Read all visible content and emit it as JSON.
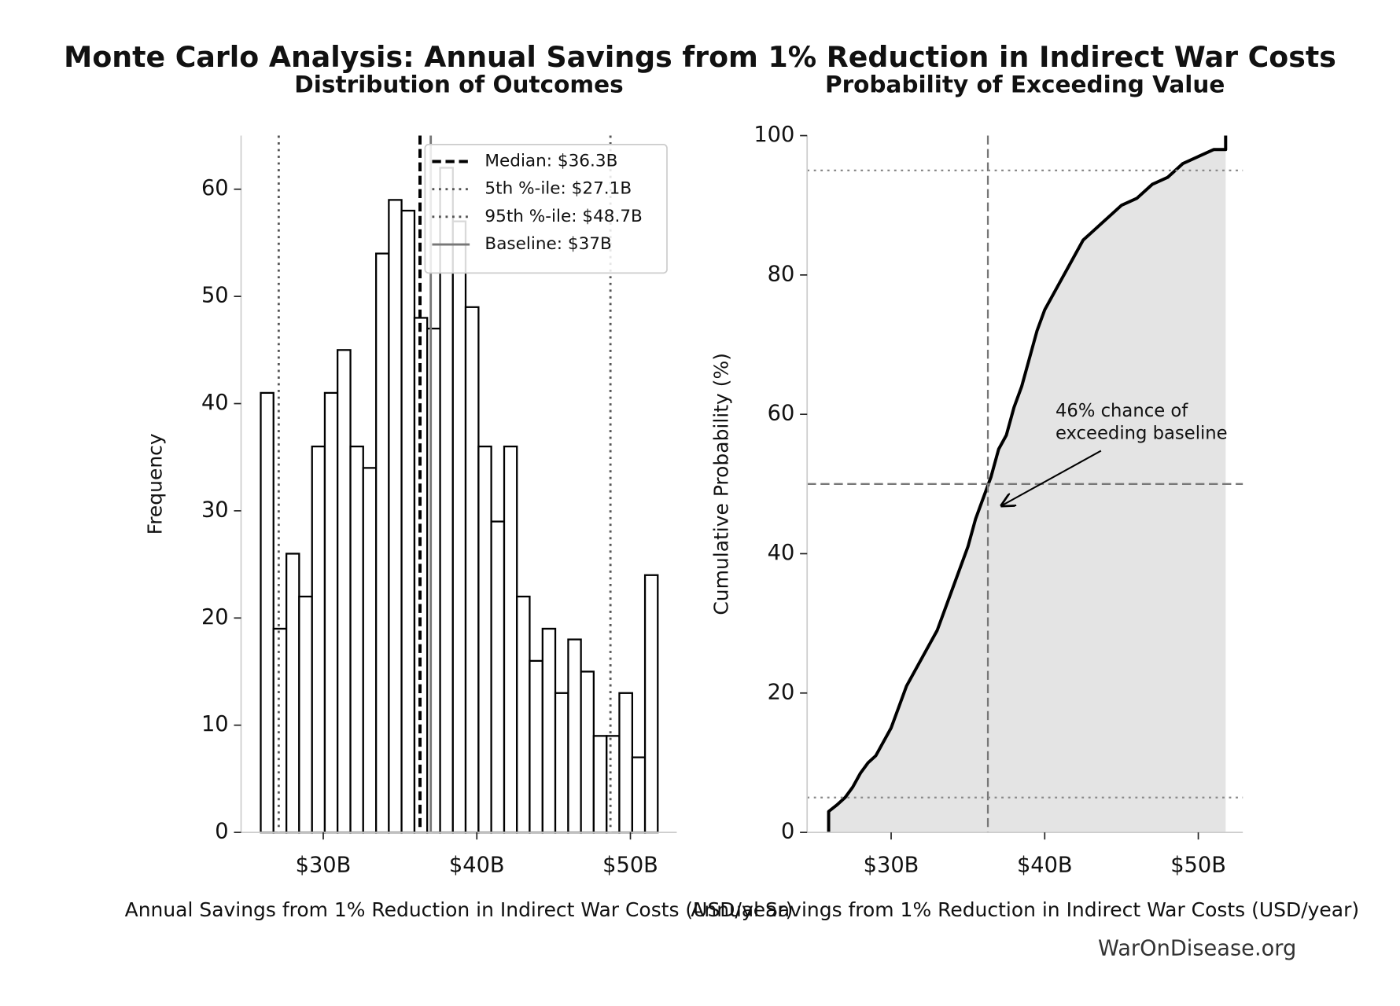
{
  "title": "Monte Carlo Analysis: Annual Savings from 1% Reduction in Indirect War Costs",
  "footer": "WarOnDisease.org",
  "chart_data": [
    {
      "type": "histogram",
      "title": "Distribution of Outcomes",
      "x_label": "Annual Savings from 1% Reduction in Indirect War Costs (USD/year)",
      "y_label": "Frequency",
      "bins": [
        25.93,
        26.76,
        27.6,
        28.43,
        29.27,
        30.1,
        30.93,
        31.77,
        32.6,
        33.44,
        34.27,
        35.1,
        35.94,
        36.77,
        37.61,
        38.44,
        39.27,
        40.11,
        40.94,
        41.78,
        42.61,
        43.44,
        44.28,
        45.11,
        45.95,
        46.78,
        47.61,
        48.45,
        49.28,
        50.12,
        50.95,
        51.78
      ],
      "values": [
        41,
        19,
        26,
        22,
        36,
        41,
        45,
        36,
        34,
        54,
        59,
        58,
        48,
        47,
        62,
        57,
        49,
        36,
        29,
        36,
        22,
        16,
        19,
        13,
        18,
        15,
        9,
        9,
        13,
        7,
        24
      ],
      "color": "#ffffff",
      "edgecolor": "#000000",
      "xlim": [
        24.65,
        53.02
      ],
      "ylim": [
        0,
        65
      ],
      "xticks": [
        {
          "value": 30,
          "label": "$30B"
        },
        {
          "value": 40,
          "label": "$40B"
        },
        {
          "value": 50,
          "label": "$50B"
        }
      ],
      "yticks": [
        0,
        10,
        20,
        30,
        40,
        50,
        60
      ],
      "reference_lines": [
        {
          "orientation": "v",
          "value": 36.3,
          "label": "Median: $36.3B",
          "style": "dashed",
          "color": "#000000",
          "width": 3.5
        },
        {
          "orientation": "v",
          "value": 27.1,
          "label": "5th %-ile: $27.1B",
          "style": "dotted",
          "color": "#555555",
          "width": 2.5
        },
        {
          "orientation": "v",
          "value": 48.7,
          "label": "95th %-ile: $48.7B",
          "style": "dotted",
          "color": "#555555",
          "width": 2.5
        },
        {
          "orientation": "v",
          "value": 37,
          "label": "Baseline: $37B",
          "style": "solid",
          "color": "#777777",
          "width": 2.5
        }
      ],
      "legend": "upper right",
      "grid": false
    },
    {
      "type": "line",
      "title": "Probability of Exceeding Value",
      "x_label": "Annual Savings from 1% Reduction in Indirect War Costs (USD/year)",
      "y_label": "Cumulative Probability (%)",
      "x": [
        25.93,
        25.93,
        26.5,
        27.0,
        27.5,
        28.0,
        28.5,
        29.0,
        29.5,
        30.0,
        30.5,
        31.0,
        31.5,
        32.0,
        32.5,
        33.0,
        33.5,
        34.0,
        34.5,
        35.0,
        35.5,
        36.0,
        36.5,
        37.0,
        37.5,
        38.0,
        38.5,
        39.0,
        39.5,
        40.0,
        40.5,
        41.0,
        41.5,
        42.0,
        42.5,
        43.0,
        43.5,
        44.0,
        45.0,
        46.0,
        47.0,
        48.0,
        49.0,
        50.0,
        51.0,
        51.78,
        51.78
      ],
      "y": [
        0,
        3,
        4,
        5,
        6.5,
        8.5,
        10,
        11,
        13,
        15,
        18,
        21,
        23,
        25,
        27,
        29,
        32,
        35,
        38,
        41,
        45,
        48,
        51,
        55,
        57,
        61,
        64,
        68,
        72,
        75,
        77,
        79,
        81,
        83,
        85,
        86,
        87,
        88,
        90,
        91,
        93,
        94,
        96,
        97,
        98,
        98,
        100
      ],
      "color": "#000000",
      "fill_color": "#e4e4e4",
      "xlim": [
        24.53,
        52.9
      ],
      "ylim": [
        0,
        100
      ],
      "xticks": [
        {
          "value": 30,
          "label": "$30B"
        },
        {
          "value": 40,
          "label": "$40B"
        },
        {
          "value": 50,
          "label": "$50B"
        }
      ],
      "yticks": [
        0,
        20,
        40,
        60,
        80,
        100
      ],
      "reference_lines": [
        {
          "orientation": "v",
          "value": 36.3,
          "style": "dashed",
          "color": "#777777",
          "width": 2
        },
        {
          "orientation": "h",
          "value": 50,
          "style": "dashed",
          "color": "#777777",
          "width": 2
        },
        {
          "orientation": "h",
          "value": 5,
          "style": "dotted",
          "color": "#888888",
          "width": 2
        },
        {
          "orientation": "h",
          "value": 95,
          "style": "dotted",
          "color": "#888888",
          "width": 2
        }
      ],
      "annotation": {
        "lines": [
          "46% chance of",
          "exceeding baseline"
        ],
        "xy": [
          37.2,
          46.9
        ],
        "xytext": [
          40.7,
          60.4
        ]
      },
      "grid": false
    }
  ]
}
